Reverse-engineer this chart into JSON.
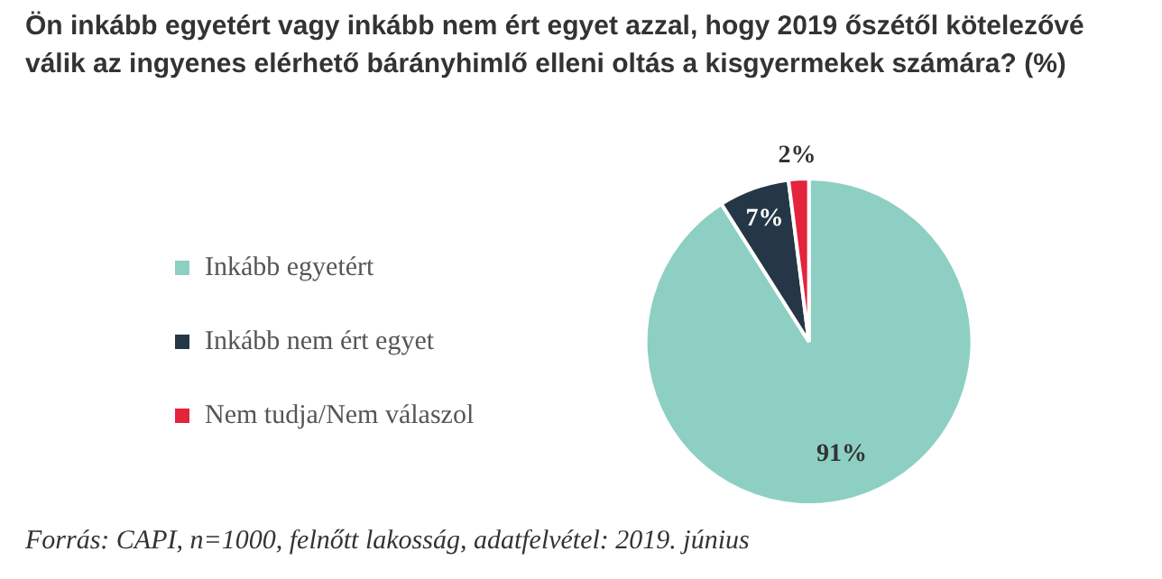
{
  "chart_data": {
    "type": "pie",
    "title": "Ön inkább egyetért vagy inkább nem ért egyet azzal, hogy 2019 őszétől kötelezővé válik az ingyenes elérhető bárányhimlő elleni oltás a kisgyermekek számára? (%)",
    "categories": [
      "Inkább egyetért",
      "Inkább nem ért egyet",
      "Nem tudja/Nem válaszol"
    ],
    "values": [
      91,
      7,
      2
    ],
    "colors": [
      "#8ecfc4",
      "#253746",
      "#e4233c"
    ],
    "value_labels": [
      "91%",
      "7%",
      "2%"
    ],
    "legend": "left",
    "annotations": [
      "Forrás: CAPI, n=1000, felnőtt lakosság, adatfelvétel: 2019. június"
    ]
  }
}
